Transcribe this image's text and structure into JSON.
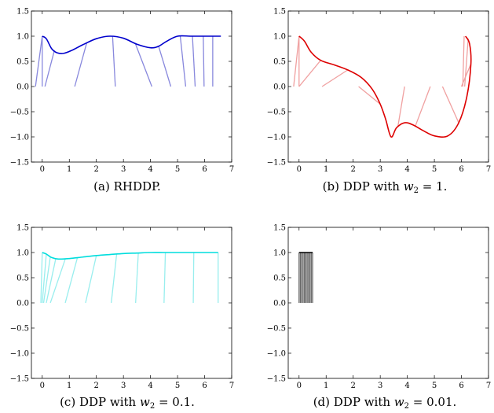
{
  "chart_data": [
    {
      "type": "line",
      "caption": "(a) RHDDP.",
      "color": "#0000cc",
      "rod_color": "#8888dd",
      "xlim": [
        -0.4,
        7
      ],
      "ylim": [
        -1.5,
        1.5
      ],
      "xticks": [
        0,
        1,
        2,
        3,
        4,
        5,
        6,
        7
      ],
      "yticks": [
        -1.5,
        -1.0,
        -0.5,
        0.0,
        0.5,
        1.0,
        1.5
      ],
      "ytick_labels": [
        "−1.5",
        "−1.0",
        "−0.5",
        "0.0",
        "0.5",
        "1.0",
        "1.5"
      ],
      "xtick_labels": [
        "0",
        "1",
        "2",
        "3",
        "4",
        "5",
        "6",
        "7"
      ],
      "trajectory": {
        "x": [
          0.0,
          0.15,
          0.35,
          0.55,
          0.8,
          1.1,
          1.5,
          2.0,
          2.5,
          3.0,
          3.5,
          4.0,
          4.3,
          4.6,
          5.0,
          5.5,
          6.0,
          6.6
        ],
        "y": [
          1.0,
          0.95,
          0.75,
          0.67,
          0.66,
          0.72,
          0.83,
          0.95,
          1.0,
          0.96,
          0.84,
          0.77,
          0.8,
          0.9,
          1.0,
          1.0,
          1.0,
          1.0
        ]
      },
      "rods": [
        {
          "top": [
            0.0,
            1.0
          ],
          "base": [
            -0.25,
            0.0
          ]
        },
        {
          "top": [
            0.45,
            0.72
          ],
          "base": [
            0.1,
            0.0
          ]
        },
        {
          "top": [
            0.0,
            1.0
          ],
          "base": [
            0.0,
            0.0
          ]
        },
        {
          "top": [
            1.65,
            0.88
          ],
          "base": [
            1.2,
            0.0
          ]
        },
        {
          "top": [
            2.6,
            0.99
          ],
          "base": [
            2.7,
            0.0
          ]
        },
        {
          "top": [
            3.45,
            0.84
          ],
          "base": [
            4.05,
            0.0
          ]
        },
        {
          "top": [
            4.3,
            0.8
          ],
          "base": [
            4.75,
            0.0
          ]
        },
        {
          "top": [
            5.1,
            1.0
          ],
          "base": [
            5.3,
            0.0
          ]
        },
        {
          "top": [
            5.55,
            1.0
          ],
          "base": [
            5.65,
            0.0
          ]
        },
        {
          "top": [
            5.95,
            1.0
          ],
          "base": [
            5.98,
            0.0
          ]
        },
        {
          "top": [
            6.3,
            1.0
          ],
          "base": [
            6.3,
            0.0
          ]
        }
      ]
    },
    {
      "type": "line",
      "caption": "(b) DDP with w2 = 1.",
      "caption_parts": [
        "(b) DDP with ",
        "w",
        "2",
        " = 1."
      ],
      "color": "#dd0000",
      "rod_color": "#f0a0a0",
      "xlim": [
        -0.4,
        7
      ],
      "ylim": [
        -1.5,
        1.5
      ],
      "xticks": [
        0,
        1,
        2,
        3,
        4,
        5,
        6,
        7
      ],
      "yticks": [
        -1.5,
        -1.0,
        -0.5,
        0.0,
        0.5,
        1.0,
        1.5
      ],
      "ytick_labels": [
        "−1.5",
        "−1.0",
        "−0.5",
        "0.0",
        "0.5",
        "1.0",
        "1.5"
      ],
      "xtick_labels": [
        "0",
        "1",
        "2",
        "3",
        "4",
        "5",
        "6",
        "7"
      ],
      "trajectory": {
        "x": [
          0.0,
          0.2,
          0.45,
          0.8,
          1.3,
          1.8,
          2.3,
          2.7,
          3.0,
          3.2,
          3.4,
          3.6,
          3.9,
          4.2,
          4.6,
          5.0,
          5.5,
          5.9,
          6.2,
          6.35,
          6.3,
          6.15
        ],
        "y": [
          1.0,
          0.9,
          0.68,
          0.52,
          0.43,
          0.33,
          0.18,
          -0.05,
          -0.35,
          -0.65,
          -1.0,
          -0.82,
          -0.72,
          -0.76,
          -0.88,
          -0.98,
          -0.98,
          -0.72,
          -0.2,
          0.45,
          0.85,
          1.0
        ]
      },
      "rods": [
        {
          "top": [
            0.0,
            1.0
          ],
          "base": [
            -0.2,
            0.0
          ]
        },
        {
          "top": [
            0.0,
            1.0
          ],
          "base": [
            0.0,
            0.0
          ]
        },
        {
          "top": [
            0.8,
            0.52
          ],
          "base": [
            0.0,
            0.0
          ]
        },
        {
          "top": [
            1.8,
            0.33
          ],
          "base": [
            0.85,
            0.0
          ]
        },
        {
          "top": [
            3.0,
            -0.35
          ],
          "base": [
            2.2,
            0.0
          ]
        },
        {
          "top": [
            3.65,
            -0.8
          ],
          "base": [
            3.9,
            0.0
          ]
        },
        {
          "top": [
            4.3,
            -0.78
          ],
          "base": [
            4.85,
            0.0
          ]
        },
        {
          "top": [
            5.9,
            -0.72
          ],
          "base": [
            5.3,
            0.0
          ]
        },
        {
          "top": [
            6.1,
            1.0
          ],
          "base": [
            6.05,
            0.0
          ]
        },
        {
          "top": [
            6.25,
            0.95
          ],
          "base": [
            6.12,
            0.0
          ]
        },
        {
          "top": [
            6.35,
            0.45
          ],
          "base": [
            6.0,
            0.0
          ]
        }
      ]
    },
    {
      "type": "line",
      "caption": "(c) DDP with w2 = 0.1.",
      "caption_parts": [
        "(c) DDP with ",
        "w",
        "2",
        " = 0.1."
      ],
      "color": "#00dddd",
      "rod_color": "#99eeee",
      "xlim": [
        -0.4,
        7
      ],
      "ylim": [
        -1.5,
        1.5
      ],
      "xticks": [
        0,
        1,
        2,
        3,
        4,
        5,
        6,
        7
      ],
      "yticks": [
        -1.5,
        -1.0,
        -0.5,
        0.0,
        0.5,
        1.0,
        1.5
      ],
      "ytick_labels": [
        "−1.5",
        "−1.0",
        "−0.5",
        "0.0",
        "0.5",
        "1.0",
        "1.5"
      ],
      "xtick_labels": [
        "0",
        "1",
        "2",
        "3",
        "4",
        "5",
        "6",
        "7"
      ],
      "trajectory": {
        "x": [
          0.0,
          0.15,
          0.35,
          0.6,
          1.0,
          1.5,
          2.0,
          2.5,
          3.0,
          3.5,
          4.0,
          4.5,
          5.0,
          5.5,
          6.0,
          6.5
        ],
        "y": [
          1.0,
          0.97,
          0.9,
          0.87,
          0.88,
          0.91,
          0.94,
          0.96,
          0.98,
          0.99,
          1.0,
          1.0,
          1.0,
          1.0,
          1.0,
          1.0
        ]
      },
      "rods": [
        {
          "top": [
            0.0,
            1.0
          ],
          "base": [
            -0.05,
            0.0
          ]
        },
        {
          "top": [
            0.15,
            0.97
          ],
          "base": [
            0.0,
            0.0
          ]
        },
        {
          "top": [
            0.3,
            0.92
          ],
          "base": [
            0.05,
            0.0
          ]
        },
        {
          "top": [
            0.5,
            0.88
          ],
          "base": [
            0.15,
            0.0
          ]
        },
        {
          "top": [
            0.85,
            0.87
          ],
          "base": [
            0.3,
            0.0
          ]
        },
        {
          "top": [
            1.3,
            0.9
          ],
          "base": [
            0.85,
            0.0
          ]
        },
        {
          "top": [
            2.0,
            0.94
          ],
          "base": [
            1.6,
            0.0
          ]
        },
        {
          "top": [
            2.75,
            0.97
          ],
          "base": [
            2.55,
            0.0
          ]
        },
        {
          "top": [
            3.55,
            0.99
          ],
          "base": [
            3.45,
            0.0
          ]
        },
        {
          "top": [
            4.55,
            1.0
          ],
          "base": [
            4.5,
            0.0
          ]
        },
        {
          "top": [
            5.6,
            1.0
          ],
          "base": [
            5.58,
            0.0
          ]
        },
        {
          "top": [
            6.5,
            1.0
          ],
          "base": [
            6.5,
            0.0
          ]
        }
      ]
    },
    {
      "type": "line",
      "caption": "(d) DDP with w2 = 0.01.",
      "caption_parts": [
        "(d) DDP with ",
        "w",
        "2",
        " = 0.01."
      ],
      "color": "#000000",
      "rod_color": "#666666",
      "xlim": [
        -0.4,
        7
      ],
      "ylim": [
        -1.5,
        1.5
      ],
      "xticks": [
        0,
        1,
        2,
        3,
        4,
        5,
        6,
        7
      ],
      "yticks": [
        -1.5,
        -1.0,
        -0.5,
        0.0,
        0.5,
        1.0,
        1.5
      ],
      "ytick_labels": [
        "−1.5",
        "−1.0",
        "−0.5",
        "0.0",
        "0.5",
        "1.0",
        "1.5"
      ],
      "xtick_labels": [
        "0",
        "1",
        "2",
        "3",
        "4",
        "5",
        "6",
        "7"
      ],
      "trajectory": {
        "x": [
          0.0,
          0.1,
          0.2,
          0.3,
          0.4,
          0.5
        ],
        "y": [
          1.0,
          1.0,
          1.0,
          1.0,
          1.0,
          1.0
        ]
      },
      "rods": [
        {
          "top": [
            0.0,
            1.0
          ],
          "base": [
            0.0,
            0.0
          ]
        },
        {
          "top": [
            0.05,
            1.0
          ],
          "base": [
            0.05,
            0.0
          ]
        },
        {
          "top": [
            0.1,
            1.0
          ],
          "base": [
            0.1,
            0.0
          ]
        },
        {
          "top": [
            0.15,
            1.0
          ],
          "base": [
            0.15,
            0.0
          ]
        },
        {
          "top": [
            0.2,
            1.0
          ],
          "base": [
            0.2,
            0.0
          ]
        },
        {
          "top": [
            0.25,
            1.0
          ],
          "base": [
            0.25,
            0.0
          ]
        },
        {
          "top": [
            0.3,
            1.0
          ],
          "base": [
            0.3,
            0.0
          ]
        },
        {
          "top": [
            0.35,
            1.0
          ],
          "base": [
            0.35,
            0.0
          ]
        },
        {
          "top": [
            0.4,
            1.0
          ],
          "base": [
            0.4,
            0.0
          ]
        },
        {
          "top": [
            0.45,
            1.0
          ],
          "base": [
            0.45,
            0.0
          ]
        },
        {
          "top": [
            0.5,
            1.0
          ],
          "base": [
            0.5,
            0.0
          ]
        }
      ]
    }
  ]
}
